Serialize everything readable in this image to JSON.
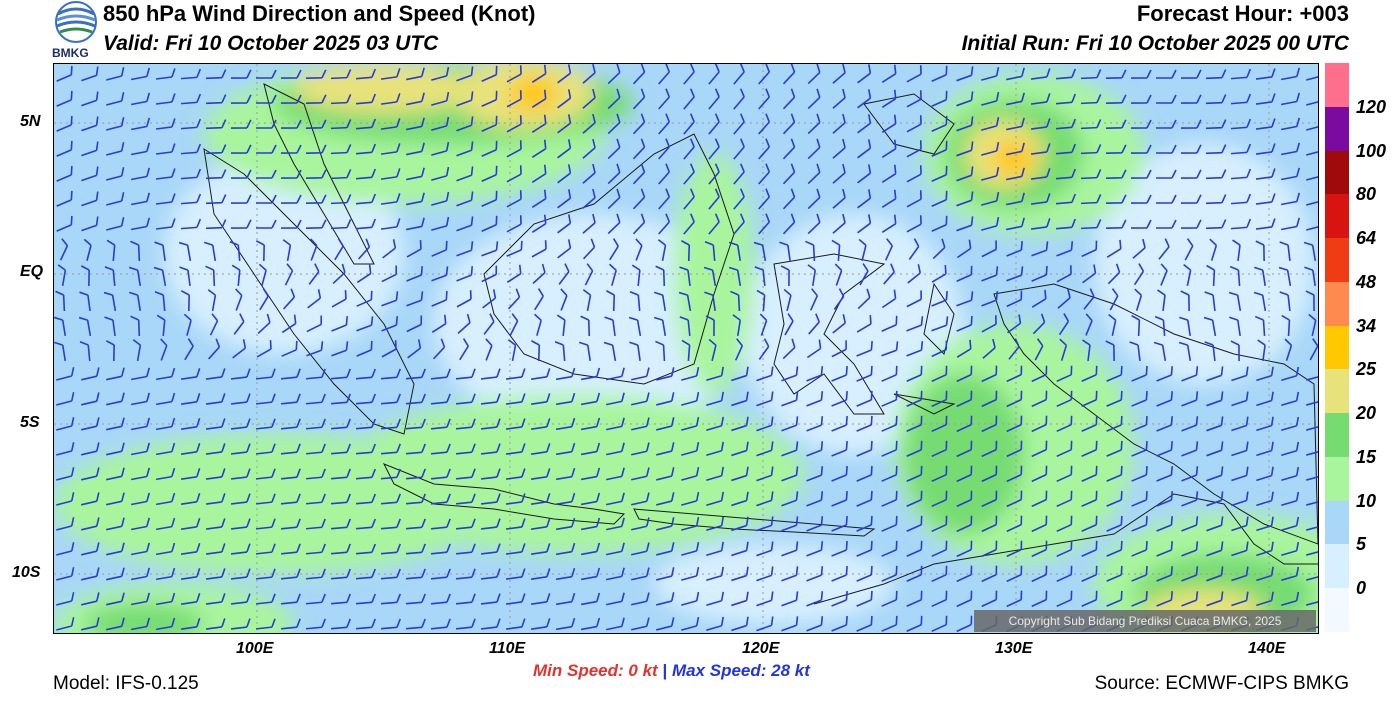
{
  "header": {
    "title": "850 hPa Wind Direction and Speed (Knot)",
    "valid": "Valid: Fri 10 October 2025 03 UTC",
    "forecast_hour": "Forecast Hour: +003",
    "initial_run": "Initial Run: Fri 10 October 2025 00 UTC",
    "logo_text": "BMKG"
  },
  "axes": {
    "lat_labels": [
      "5N",
      "EQ",
      "5S",
      "10S"
    ],
    "lon_labels": [
      "100E",
      "110E",
      "120E",
      "130E",
      "140E"
    ]
  },
  "colorbar": {
    "labels": [
      "0",
      "5",
      "10",
      "15",
      "20",
      "25",
      "34",
      "48",
      "64",
      "80",
      "100",
      "120"
    ],
    "colors": [
      "#f2faff",
      "#d7efff",
      "#a9d7f7",
      "#a9f59d",
      "#76dc72",
      "#e8e27a",
      "#ffc800",
      "#ff8a50",
      "#f03c14",
      "#d81410",
      "#a00a0a",
      "#7a0aa0",
      "#ff6e8c"
    ]
  },
  "speed": {
    "min_label": "Min Speed:",
    "min_value": "0 kt",
    "separator": "|",
    "max_label": "Max Speed:",
    "max_value": "28 kt"
  },
  "footer": {
    "model": "Model: IFS-0.125",
    "source": "Source: ECMWF-CIPS BMKG",
    "copyright": "Copyright Sub Bidang Prediksi Cuaca BMKG, 2025"
  },
  "colors": {
    "barb": "#2a3bd6",
    "coast": "#1a1a1a",
    "grid": "#9a9a9a"
  }
}
